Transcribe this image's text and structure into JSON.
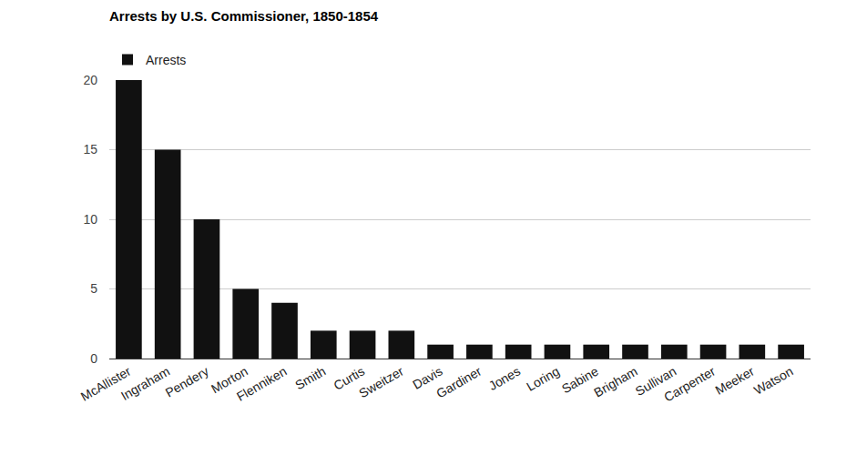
{
  "chart_data": {
    "type": "bar",
    "title": "Arrests by U.S. Commissioner, 1850-1854",
    "categories": [
      "McAllister",
      "Ingraham",
      "Pendery",
      "Morton",
      "Flenniken",
      "Smith",
      "Curtis",
      "Sweitzer",
      "Davis",
      "Gardiner",
      "Jones",
      "Loring",
      "Sabine",
      "Brigham",
      "Sullivan",
      "Carpenter",
      "Meeker",
      "Watson"
    ],
    "series": [
      {
        "name": "Arrests",
        "color": "#111111",
        "values": [
          20,
          15,
          10,
          5,
          4,
          2,
          2,
          2,
          1,
          1,
          1,
          1,
          1,
          1,
          1,
          1,
          1,
          1
        ]
      }
    ],
    "ylim": [
      0,
      20
    ],
    "yticks": [
      0,
      5,
      10,
      15,
      20
    ],
    "grid": true,
    "legend": "top-left"
  }
}
